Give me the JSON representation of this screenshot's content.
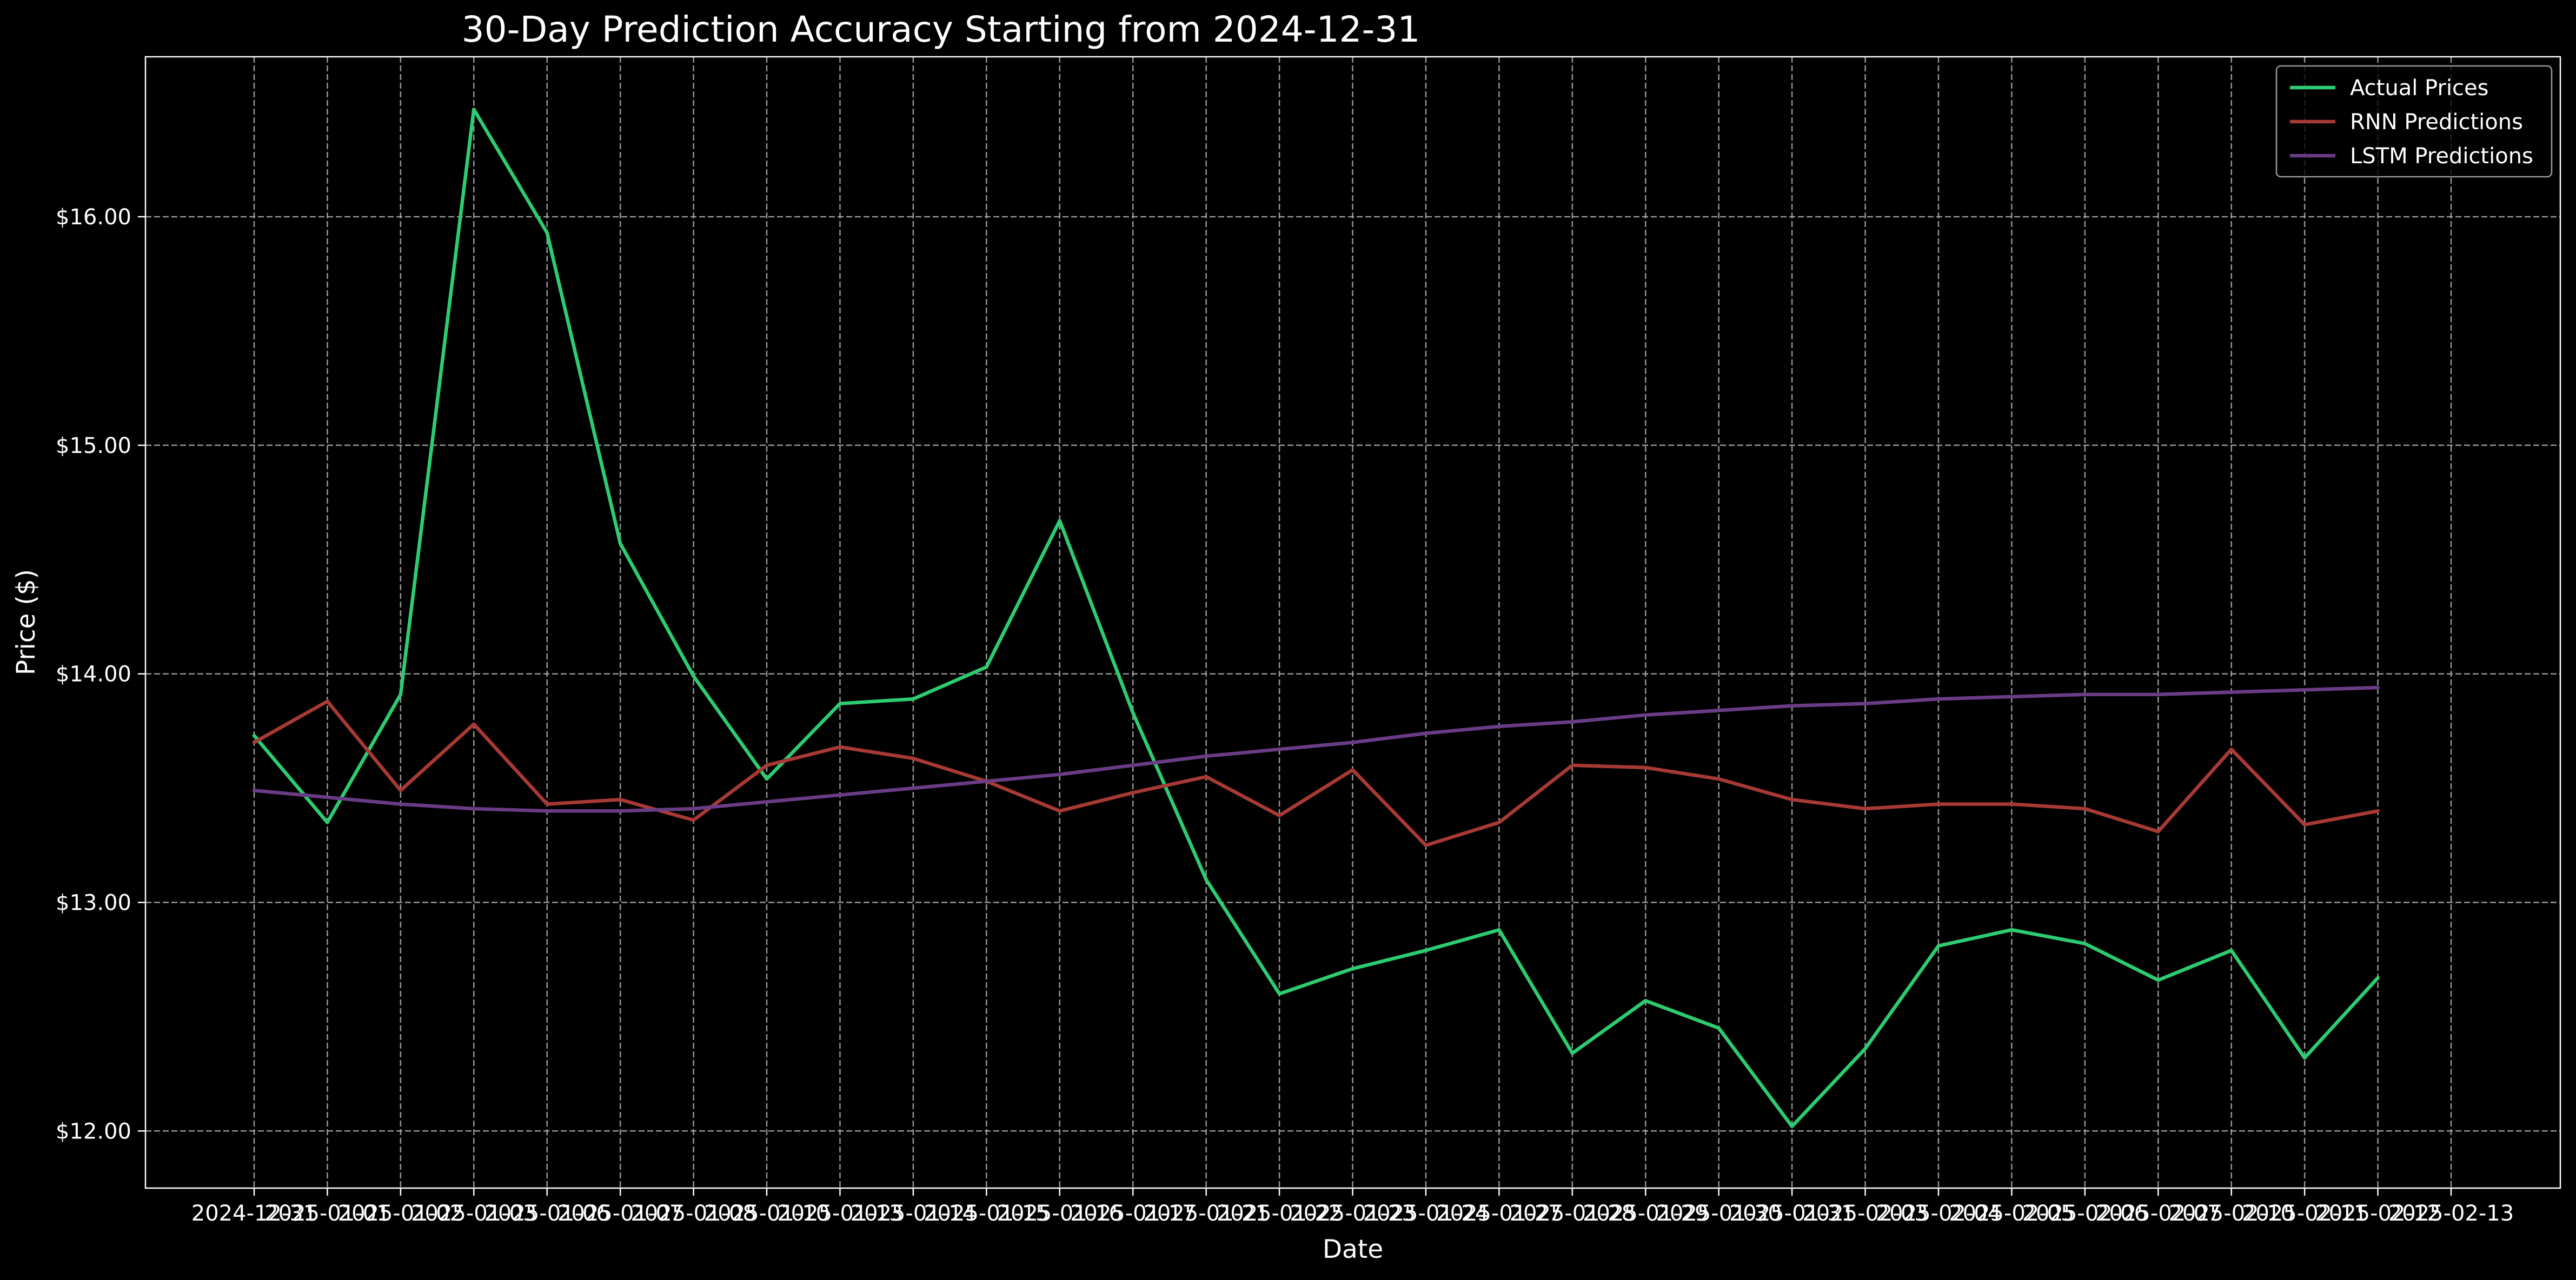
{
  "chart_data": {
    "type": "line",
    "title": "30-Day Prediction Accuracy Starting from 2024-12-31",
    "xlabel": "Date",
    "ylabel": "Price ($)",
    "ylim": [
      11.75,
      16.7
    ],
    "yticks": [
      12.0,
      13.0,
      14.0,
      15.0,
      16.0
    ],
    "ytick_labels": [
      "$12.00",
      "$13.00",
      "$14.00",
      "$15.00",
      "$16.00"
    ],
    "grid": true,
    "legend_position": "top-right",
    "x": [
      "2024-12-31",
      "2025-01-01",
      "2025-01-02",
      "2025-01-03",
      "2025-01-06",
      "2025-01-07",
      "2025-01-08",
      "2025-01-10",
      "2025-01-13",
      "2025-01-14",
      "2025-01-15",
      "2025-01-16",
      "2025-01-17",
      "2025-01-21",
      "2025-01-22",
      "2025-01-23",
      "2025-01-24",
      "2025-01-27",
      "2025-01-28",
      "2025-01-29",
      "2025-01-30",
      "2025-01-31",
      "2025-02-03",
      "2025-02-04",
      "2025-02-05",
      "2025-02-06",
      "2025-02-07",
      "2025-02-10",
      "2025-02-11",
      "2025-02-12",
      "2025-02-13"
    ],
    "series": [
      {
        "name": "Actual Prices",
        "color": "#2ecc71",
        "values": [
          13.73,
          13.35,
          13.91,
          16.47,
          15.93,
          14.57,
          13.99,
          13.54,
          13.87,
          13.89,
          14.03,
          14.67,
          13.83,
          13.1,
          12.6,
          12.71,
          12.79,
          12.88,
          12.34,
          12.57,
          12.45,
          12.02,
          12.36,
          12.81,
          12.88,
          12.82,
          12.66,
          12.79,
          12.32,
          12.67,
          null
        ]
      },
      {
        "name": "RNN Predictions",
        "color": "#a83a35",
        "values": [
          13.7,
          13.88,
          13.49,
          13.78,
          13.43,
          13.45,
          13.36,
          13.6,
          13.68,
          13.63,
          13.53,
          13.4,
          13.48,
          13.55,
          13.38,
          13.58,
          13.25,
          13.35,
          13.6,
          13.59,
          13.54,
          13.45,
          13.41,
          13.43,
          13.43,
          13.41,
          13.31,
          13.67,
          13.34,
          13.4,
          null
        ]
      },
      {
        "name": "LSTM Predictions",
        "color": "#6b3c86",
        "values": [
          13.49,
          13.46,
          13.43,
          13.41,
          13.4,
          13.4,
          13.41,
          13.44,
          13.47,
          13.5,
          13.53,
          13.56,
          13.6,
          13.64,
          13.67,
          13.7,
          13.74,
          13.77,
          13.79,
          13.82,
          13.84,
          13.86,
          13.87,
          13.89,
          13.9,
          13.91,
          13.91,
          13.92,
          13.93,
          13.94,
          null
        ]
      }
    ]
  }
}
